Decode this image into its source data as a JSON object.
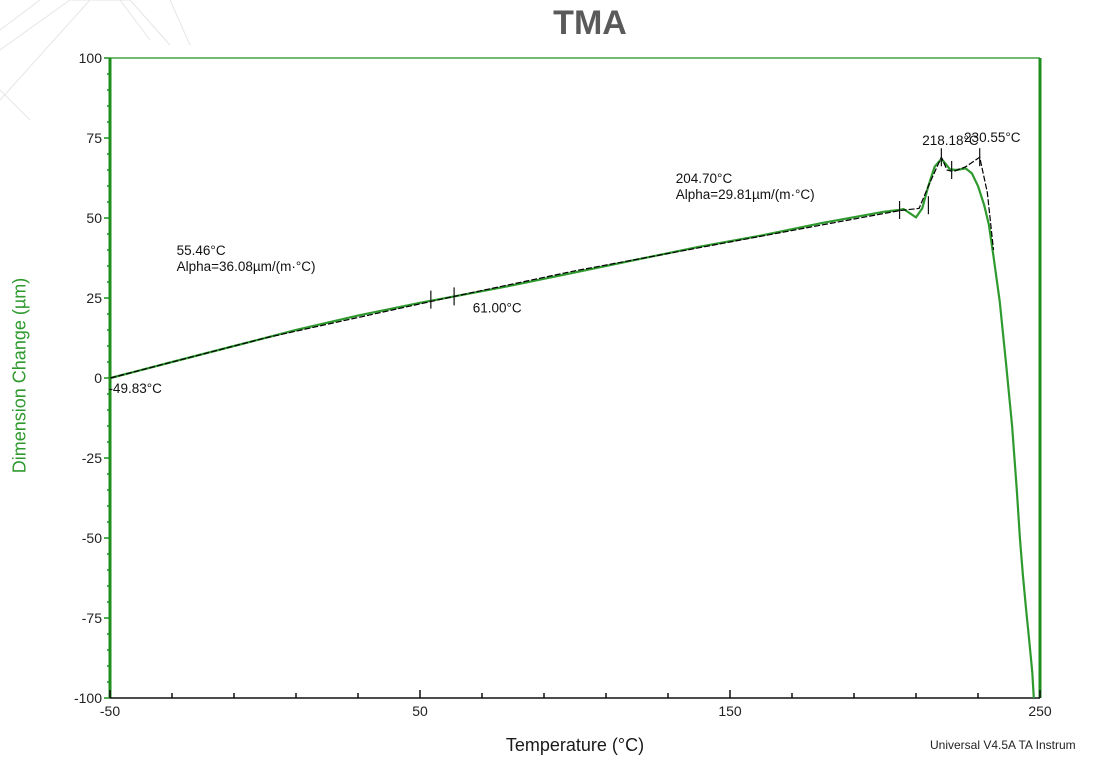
{
  "chart_data": {
    "type": "line",
    "title": "TMA",
    "xlabel": "Temperature (°C)",
    "ylabel": "Dimension Change (µm)",
    "xlim": [
      -50,
      250
    ],
    "ylim": [
      -100,
      100
    ],
    "x_ticks": [
      "-50",
      "50",
      "150",
      "250"
    ],
    "y_ticks": [
      "100",
      "75",
      "50",
      "25",
      "0",
      "-25",
      "-50",
      "-75",
      "-100"
    ],
    "grid": false,
    "series": [
      {
        "line_color": "#2e9a2e",
        "x": [
          -49.83,
          -30,
          -10,
          10,
          30,
          50,
          61,
          80,
          100,
          120,
          140,
          160,
          180,
          200,
          204.7,
          206,
          208,
          210,
          212,
          214,
          216,
          218.18,
          219.5,
          221,
          223,
          226,
          228,
          230,
          232,
          233.5,
          235,
          237,
          239,
          241,
          242.5,
          243.5,
          244.5,
          245.5,
          246.5,
          247.5,
          248
        ],
        "y": [
          0,
          5,
          10,
          15,
          19.5,
          23.5,
          25.5,
          29,
          33,
          37,
          41,
          44.5,
          48.5,
          52,
          52.5,
          52.8,
          51.5,
          50.2,
          53,
          60,
          66,
          68.5,
          67,
          65.2,
          65,
          65.5,
          64,
          60,
          54,
          48,
          38,
          24,
          5,
          -15,
          -35,
          -50,
          -62,
          -72,
          -82,
          -92,
          -100
        ]
      },
      {
        "line_color": "#000000",
        "x": [
          -49.83,
          0,
          61,
          100,
          150,
          204.7,
          211,
          214,
          218.18,
          220,
          222,
          226,
          230.55,
          233,
          235
        ],
        "y": [
          0,
          12.5,
          25.5,
          33.5,
          42.5,
          52.3,
          53,
          60,
          69,
          65,
          64.5,
          66,
          69,
          58,
          40
        ]
      }
    ],
    "annotations": [
      {
        "lines": [
          "55.46°C",
          "Alpha=36.08µm/(m·°C)"
        ],
        "x": -28.5,
        "y": 38.5
      },
      {
        "lines": [
          "61.00°C"
        ],
        "x": 67,
        "y": 20.5
      },
      {
        "lines": [
          "-49.83°C"
        ],
        "x": -50.5,
        "y": -4.7
      },
      {
        "lines": [
          "204.70°C",
          "Alpha=29.81µm/(m·°C)"
        ],
        "x": 132.5,
        "y": 61
      },
      {
        "lines": [
          "218.18°C"
        ],
        "x": 212,
        "y": 72.8
      },
      {
        "lines": [
          "230.55°C"
        ],
        "x": 225.5,
        "y": 73.8
      }
    ],
    "footer": "Universal V4.5A TA Instrum"
  }
}
